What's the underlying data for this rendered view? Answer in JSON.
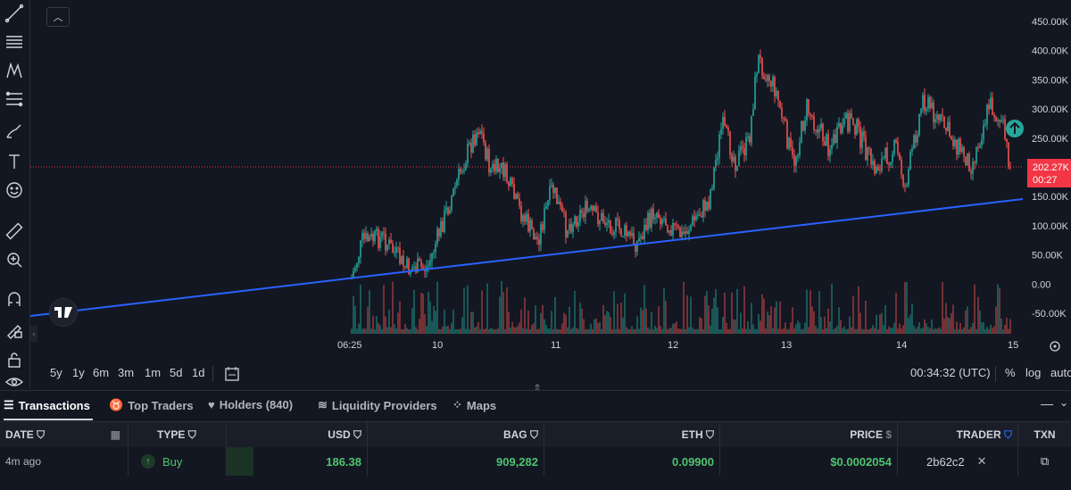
{
  "chart": {
    "price_axis": [
      "450.00K",
      "400.00K",
      "350.00K",
      "300.00K",
      "250.00K",
      "200.00K",
      "150.00K",
      "100.00K",
      "50.00K",
      "0.00",
      "-50.00K"
    ],
    "current_price": "202.27K",
    "countdown": "00:27",
    "time_axis": [
      "06:25",
      "10",
      "11",
      "12",
      "13",
      "14",
      "15"
    ],
    "colors": {
      "up": "#26a69a",
      "down": "#ef5350",
      "trendline": "#2962ff",
      "price_tag": "#f23645",
      "background": "#131722"
    }
  },
  "range_buttons": [
    "5y",
    "1y",
    "6m",
    "3m",
    "1m",
    "5d",
    "1d"
  ],
  "status": {
    "clock": "00:34:32 (UTC)",
    "percent": "%",
    "log": "log",
    "auto": "auto"
  },
  "tabs": [
    {
      "label": "Transactions",
      "icon": "list-icon"
    },
    {
      "label": "Top Traders",
      "icon": "trophy-icon"
    },
    {
      "label": "Holders (840)",
      "icon": "heart-icon"
    },
    {
      "label": "Liquidity Providers",
      "icon": "layers-icon"
    },
    {
      "label": "Maps",
      "icon": "bubbles-icon"
    }
  ],
  "table": {
    "headers": {
      "date": "DATE",
      "type": "TYPE",
      "usd": "USD",
      "bag": "BAG",
      "eth": "ETH",
      "price": "PRICE",
      "trader": "TRADER",
      "txn": "TXN"
    },
    "rows": [
      {
        "date": "4m ago",
        "type": "Buy",
        "usd": "186.38",
        "bag": "909,282",
        "eth": "0.09900",
        "price": "$0.0002054",
        "trader": "2b62c2"
      }
    ]
  }
}
